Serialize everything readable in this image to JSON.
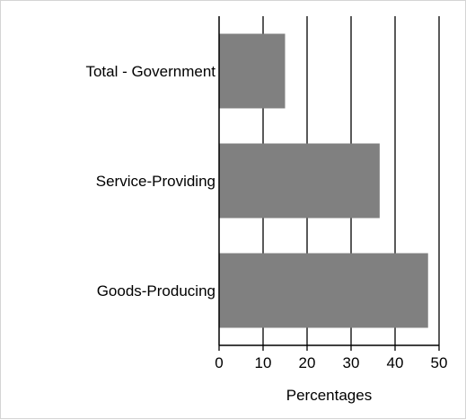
{
  "chart_data": {
    "type": "bar",
    "orientation": "horizontal",
    "categories": [
      "Total - Government",
      "Service-Providing",
      "Goods-Producing"
    ],
    "values": [
      15,
      36.5,
      47.5
    ],
    "title": "",
    "xlabel": "Percentages",
    "ylabel": "",
    "xlim": [
      0,
      50
    ],
    "xticks": [
      "0",
      "10",
      "20",
      "30",
      "40",
      "50"
    ],
    "grid": "vertical",
    "legend": "none",
    "bar_color": "#808080"
  }
}
